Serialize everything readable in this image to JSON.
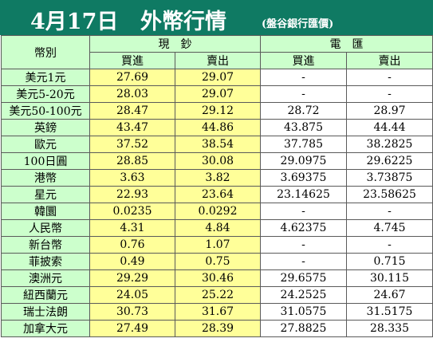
{
  "header": {
    "date": "4月17日",
    "title": "外幣行情",
    "source": "(盤谷銀行匯價)"
  },
  "columns": {
    "currency": "幣別",
    "cash": "現　鈔",
    "remit": "電　匯",
    "buy": "買進",
    "sell": "賣出"
  },
  "rows": [
    {
      "name": "美元1元",
      "cash_buy": "27.69",
      "cash_sell": "29.07",
      "remit_buy": "-",
      "remit_sell": "-"
    },
    {
      "name": "美元5-20元",
      "cash_buy": "28.03",
      "cash_sell": "29.07",
      "remit_buy": "-",
      "remit_sell": "-"
    },
    {
      "name": "美元50-100元",
      "cash_buy": "28.47",
      "cash_sell": "29.12",
      "remit_buy": "28.72",
      "remit_sell": "28.97"
    },
    {
      "name": "英鎊",
      "cash_buy": "43.47",
      "cash_sell": "44.86",
      "remit_buy": "43.875",
      "remit_sell": "44.44"
    },
    {
      "name": "歐元",
      "cash_buy": "37.52",
      "cash_sell": "38.54",
      "remit_buy": "37.785",
      "remit_sell": "38.2825"
    },
    {
      "name": "100日圓",
      "cash_buy": "28.85",
      "cash_sell": "30.08",
      "remit_buy": "29.0975",
      "remit_sell": "29.6225"
    },
    {
      "name": "港幣",
      "cash_buy": "3.63",
      "cash_sell": "3.82",
      "remit_buy": "3.69375",
      "remit_sell": "3.73875"
    },
    {
      "name": "星元",
      "cash_buy": "22.93",
      "cash_sell": "23.64",
      "remit_buy": "23.14625",
      "remit_sell": "23.58625"
    },
    {
      "name": "韓圜",
      "cash_buy": "0.0235",
      "cash_sell": "0.0292",
      "remit_buy": "-",
      "remit_sell": "-"
    },
    {
      "name": "人民幣",
      "cash_buy": "4.31",
      "cash_sell": "4.84",
      "remit_buy": "4.62375",
      "remit_sell": "4.745"
    },
    {
      "name": "新台幣",
      "cash_buy": "0.76",
      "cash_sell": "1.07",
      "remit_buy": "-",
      "remit_sell": "-"
    },
    {
      "name": "菲披索",
      "cash_buy": "0.49",
      "cash_sell": "0.75",
      "remit_buy": "-",
      "remit_sell": "0.715"
    },
    {
      "name": "澳洲元",
      "cash_buy": "29.29",
      "cash_sell": "30.46",
      "remit_buy": "29.6575",
      "remit_sell": "30.115"
    },
    {
      "name": "紐西蘭元",
      "cash_buy": "24.05",
      "cash_sell": "25.22",
      "remit_buy": "24.2525",
      "remit_sell": "24.67"
    },
    {
      "name": "瑞士法朗",
      "cash_buy": "30.73",
      "cash_sell": "31.67",
      "remit_buy": "31.0575",
      "remit_sell": "31.5175"
    },
    {
      "name": "加拿大元",
      "cash_buy": "27.49",
      "cash_sell": "28.39",
      "remit_buy": "27.8825",
      "remit_sell": "28.335"
    }
  ]
}
